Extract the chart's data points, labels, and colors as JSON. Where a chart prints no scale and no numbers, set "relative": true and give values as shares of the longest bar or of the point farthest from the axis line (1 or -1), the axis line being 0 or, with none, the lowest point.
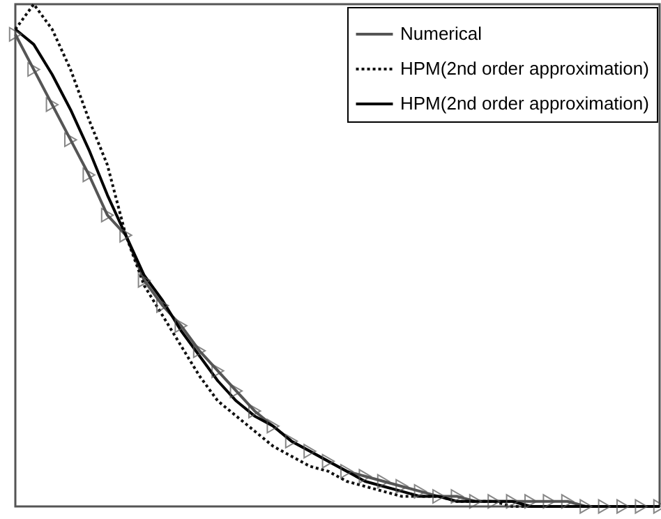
{
  "chart_data": {
    "type": "line",
    "relative": true,
    "legend": "top right",
    "categories": [
      null,
      null,
      null,
      null,
      null,
      null,
      null,
      null,
      null,
      null,
      null,
      null,
      null,
      null,
      null,
      null,
      null,
      null,
      null,
      null,
      null,
      null,
      null,
      null,
      null,
      null,
      null,
      null,
      null,
      null,
      null,
      null,
      null,
      null,
      null,
      null
    ],
    "series": [
      {
        "name": "Numerical",
        "color": "#555555",
        "marker": "triangle",
        "line_style": "solid",
        "values": [
          0.94,
          0.87,
          0.8,
          0.73,
          0.66,
          0.58,
          0.54,
          0.45,
          0.4,
          0.36,
          0.31,
          0.27,
          0.23,
          0.19,
          0.16,
          0.13,
          0.11,
          0.09,
          0.07,
          0.06,
          0.05,
          0.04,
          0.03,
          0.02,
          0.02,
          0.01,
          0.01,
          0.01,
          0.01,
          0.01,
          0.01,
          0,
          0,
          0,
          0,
          0
        ]
      },
      {
        "name": "HPM(2nd order approximation)",
        "color": "#111111",
        "marker": "none",
        "line_style": "dotted",
        "values": [
          0.95,
          1,
          0.95,
          0.87,
          0.77,
          0.68,
          0.54,
          0.44,
          0.38,
          0.32,
          0.26,
          0.21,
          0.18,
          0.15,
          0.12,
          0.1,
          0.08,
          0.07,
          0.05,
          0.04,
          0.03,
          0.02,
          0.02,
          0.02,
          0.01,
          0.01,
          0.01,
          0,
          0,
          0,
          0,
          0,
          0,
          0,
          0,
          0
        ]
      },
      {
        "name": "HPM(2nd order approximation)",
        "color": "#000000",
        "marker": "none",
        "line_style": "solid",
        "values": [
          0.95,
          0.92,
          0.86,
          0.79,
          0.71,
          0.62,
          0.54,
          0.46,
          0.41,
          0.35,
          0.3,
          0.25,
          0.21,
          0.18,
          0.16,
          0.13,
          0.11,
          0.09,
          0.07,
          0.05,
          0.04,
          0.03,
          0.02,
          0.02,
          0.01,
          0.01,
          0.01,
          0.01,
          0,
          0,
          0,
          0,
          0,
          0,
          0,
          0
        ]
      }
    ]
  }
}
